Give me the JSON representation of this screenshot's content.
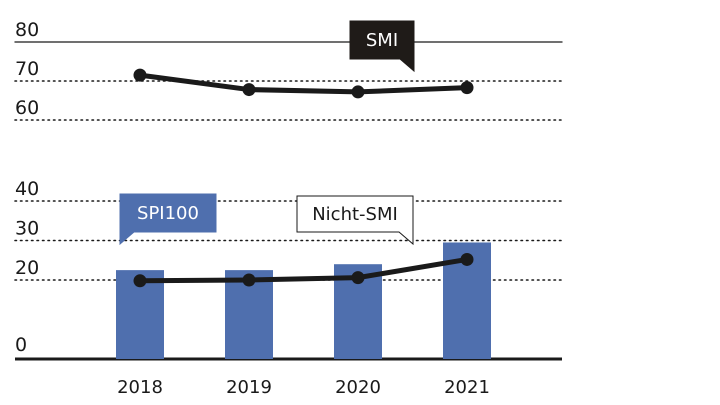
{
  "chart_data": [
    {
      "type": "line",
      "panel": "top",
      "y_ticks": [
        "80",
        "70",
        "60"
      ],
      "ylim": [
        60,
        80
      ],
      "categories": [
        "2018",
        "2019",
        "2020",
        "2021"
      ],
      "series": [
        {
          "name": "SMI",
          "values": [
            71.5,
            67.8,
            67.2,
            68.3
          ],
          "color": "#1a1a1a"
        }
      ],
      "annotation": {
        "text": "SMI",
        "style": "dark"
      },
      "grid": true
    },
    {
      "type": "bar",
      "panel": "bottom",
      "y_ticks": [
        "40",
        "30",
        "20",
        "0"
      ],
      "ylim": [
        0,
        40
      ],
      "categories": [
        "2018",
        "2019",
        "2020",
        "2021"
      ],
      "series": [
        {
          "name": "SPI100",
          "kind": "bar",
          "values": [
            22.5,
            22.5,
            24,
            29.5
          ],
          "color": "#4f6fae"
        },
        {
          "name": "Nicht-SMI",
          "kind": "line",
          "values": [
            19.8,
            20,
            20.6,
            25.2
          ],
          "color": "#1a1a1a"
        }
      ],
      "annotations": [
        {
          "text": "SPI100",
          "style": "blue"
        },
        {
          "text": "Nicht-SMI",
          "style": "outline"
        }
      ],
      "grid": true
    }
  ]
}
